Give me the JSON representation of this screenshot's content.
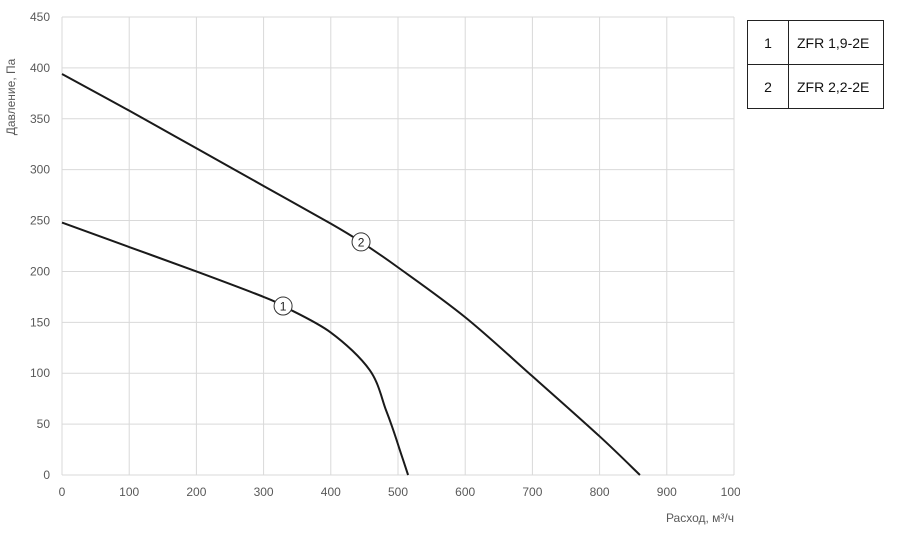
{
  "chart_data": {
    "type": "line",
    "xlabel": "Расход, м³/ч",
    "ylabel": "Давление, Па",
    "xlim": [
      0,
      1000
    ],
    "ylim": [
      0,
      450
    ],
    "xticks": [
      0,
      100,
      200,
      300,
      400,
      500,
      600,
      700,
      800,
      900,
      1000
    ],
    "yticks": [
      0,
      50,
      100,
      150,
      200,
      250,
      300,
      350,
      400,
      450
    ],
    "grid": true,
    "series": [
      {
        "name": "ZFR 1,9-2E",
        "label": "1",
        "marker_at": [
          329,
          166
        ],
        "x": [
          0,
          100,
          200,
          300,
          329,
          400,
          458,
          482,
          493,
          505,
          515
        ],
        "y": [
          248,
          224,
          200,
          175,
          166,
          140,
          103,
          64,
          44,
          20,
          0
        ]
      },
      {
        "name": "ZFR 2,2-2E",
        "label": "2",
        "marker_at": [
          445,
          229
        ],
        "x": [
          0,
          100,
          200,
          300,
          400,
          445,
          500,
          600,
          700,
          800,
          860
        ],
        "y": [
          394,
          358,
          321,
          284,
          247,
          229,
          204,
          155,
          97,
          38,
          0
        ]
      }
    ],
    "legend_placement": "right",
    "colors": {
      "curve": "#1a1a1a",
      "grid": "#d9d9d9"
    }
  }
}
